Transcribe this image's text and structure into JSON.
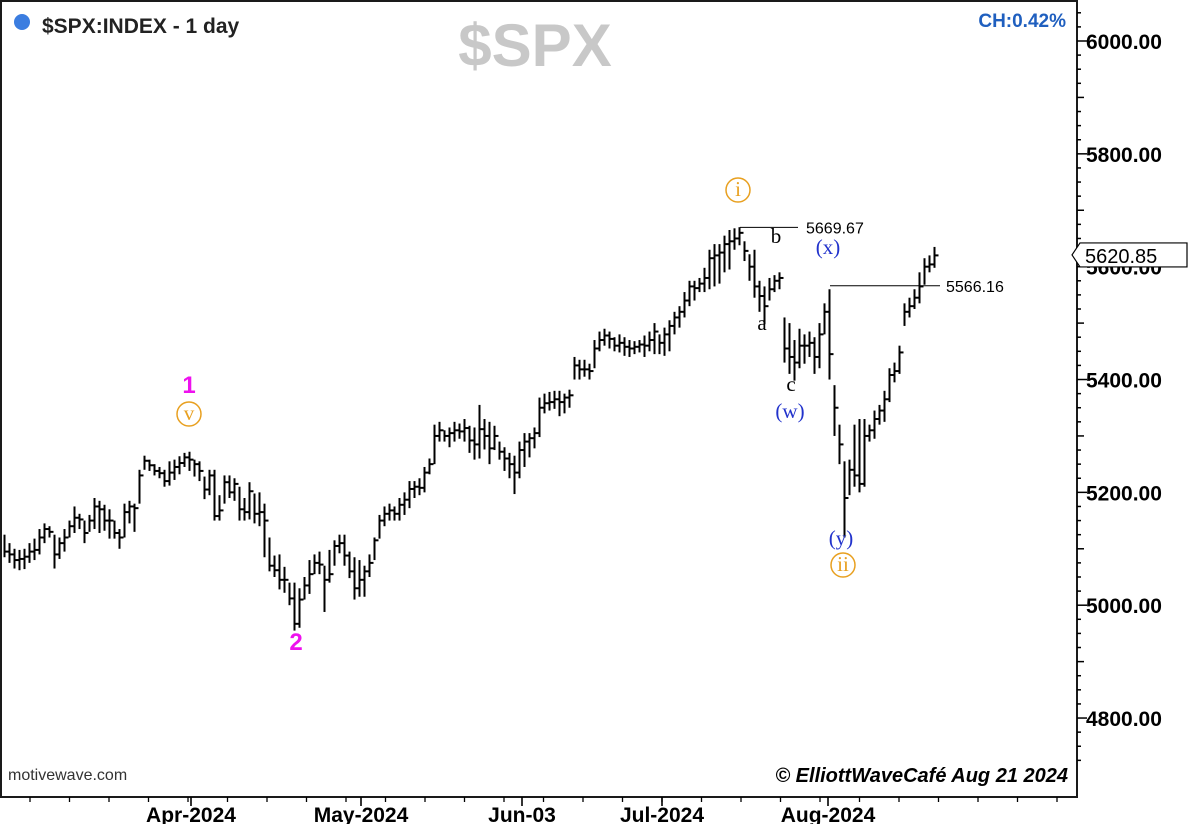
{
  "header": {
    "title": "$SPX:INDEX - 1 day",
    "watermark": "$SPX",
    "change": "CH:0.42%",
    "source": "motivewave.com",
    "copyright": "© ElliottWaveCafé Aug 21 2024"
  },
  "colors": {
    "bars": "#000000",
    "status_dot": "#3b7de0",
    "change_text": "#1f5fbf",
    "watermark": "#c8c8c8",
    "primary_wave": "#ee11ee",
    "minor_wave": "#e8a020",
    "blue_wave": "#2233cc",
    "black_wave": "#000000"
  },
  "chart_data": {
    "type": "ohlc",
    "title": "$SPX:INDEX - 1 day",
    "series_name": "$SPX",
    "ylim": [
      4700,
      6100
    ],
    "yticks": [
      "4800.00",
      "5000.00",
      "5200.00",
      "5400.00",
      "5600.00",
      "5800.00",
      "6000.00"
    ],
    "xticks": [
      "Apr-2024",
      "May-2024",
      "Jun-03",
      "Jul-2024",
      "Aug-2024"
    ],
    "last_price": "5620.85",
    "levels": [
      {
        "value": 5669.67,
        "label": "5669.67"
      },
      {
        "value": 5566.16,
        "label": "5566.16"
      }
    ],
    "wave_labels": [
      {
        "text": "1",
        "style": "primary"
      },
      {
        "text": "v",
        "style": "minor-circle"
      },
      {
        "text": "2",
        "style": "primary"
      },
      {
        "text": "i",
        "style": "minor-circle"
      },
      {
        "text": "a",
        "style": "black"
      },
      {
        "text": "b",
        "style": "black"
      },
      {
        "text": "c",
        "style": "black"
      },
      {
        "text": "(w)",
        "style": "blue"
      },
      {
        "text": "(x)",
        "style": "blue"
      },
      {
        "text": "(y)",
        "style": "blue"
      },
      {
        "text": "ii",
        "style": "minor-circle"
      }
    ],
    "bars": [
      [
        4.5,
        5125,
        5085,
        5095
      ],
      [
        9.5,
        5110,
        5075,
        5090
      ],
      [
        14.5,
        5100,
        5065,
        5080
      ],
      [
        19.5,
        5098,
        5062,
        5082
      ],
      [
        24.5,
        5100,
        5064,
        5086
      ],
      [
        29.5,
        5110,
        5075,
        5095
      ],
      [
        34.5,
        5118,
        5080,
        5098
      ],
      [
        39.5,
        5135,
        5090,
        5120
      ],
      [
        44.5,
        5145,
        5110,
        5135
      ],
      [
        49.5,
        5140,
        5120,
        5130
      ],
      [
        54.5,
        5125,
        5065,
        5090
      ],
      [
        59.5,
        5120,
        5082,
        5110
      ],
      [
        64.5,
        5135,
        5095,
        5120
      ],
      [
        69.5,
        5150,
        5120,
        5140
      ],
      [
        74.5,
        5175,
        5128,
        5155
      ],
      [
        79.5,
        5162,
        5135,
        5152
      ],
      [
        84.5,
        5150,
        5110,
        5128
      ],
      [
        89.5,
        5160,
        5130,
        5150
      ],
      [
        94.5,
        5190,
        5135,
        5175
      ],
      [
        99.5,
        5185,
        5128,
        5170
      ],
      [
        104.5,
        5178,
        5132,
        5150
      ],
      [
        109.5,
        5170,
        5118,
        5150
      ],
      [
        114.5,
        5150,
        5118,
        5128
      ],
      [
        119.5,
        5135,
        5100,
        5120
      ],
      [
        124.5,
        5180,
        5120,
        5165
      ],
      [
        129.5,
        5185,
        5145,
        5175
      ],
      [
        134.5,
        5180,
        5130,
        5172
      ],
      [
        139.5,
        5240,
        5180,
        5230
      ],
      [
        144.5,
        5265,
        5240,
        5256
      ],
      [
        149.5,
        5258,
        5238,
        5248
      ],
      [
        154.5,
        5250,
        5230,
        5238
      ],
      [
        159.5,
        5245,
        5225,
        5234
      ],
      [
        164.5,
        5240,
        5210,
        5220
      ],
      [
        169.5,
        5255,
        5212,
        5235
      ],
      [
        174.5,
        5258,
        5222,
        5245
      ],
      [
        179.5,
        5264,
        5232,
        5252
      ],
      [
        184.5,
        5270,
        5245,
        5262
      ],
      [
        189.5,
        5272,
        5238,
        5258
      ],
      [
        194.5,
        5258,
        5228,
        5250
      ],
      [
        199.5,
        5255,
        5220,
        5238
      ],
      [
        204.5,
        5228,
        5188,
        5205
      ],
      [
        209.5,
        5240,
        5195,
        5230
      ],
      [
        214.5,
        5240,
        5150,
        5158
      ],
      [
        219.5,
        5195,
        5150,
        5168
      ],
      [
        224.5,
        5230,
        5180,
        5218
      ],
      [
        229.5,
        5230,
        5190,
        5200
      ],
      [
        234.5,
        5225,
        5185,
        5215
      ],
      [
        239.5,
        5210,
        5150,
        5170
      ],
      [
        244.5,
        5190,
        5150,
        5165
      ],
      [
        249.5,
        5218,
        5152,
        5202
      ],
      [
        254.5,
        5198,
        5145,
        5162
      ],
      [
        259.5,
        5200,
        5140,
        5165
      ],
      [
        264.5,
        5180,
        5085,
        5150
      ],
      [
        269.5,
        5120,
        5060,
        5070
      ],
      [
        274.5,
        5088,
        5050,
        5062
      ],
      [
        279.5,
        5090,
        5028,
        5045
      ],
      [
        284.5,
        5068,
        5022,
        5045
      ],
      [
        289.5,
        5040,
        5000,
        5012
      ],
      [
        294.5,
        5040,
        4955,
        4967
      ],
      [
        299.5,
        5030,
        4960,
        5010
      ],
      [
        304.5,
        5050,
        5010,
        5035
      ],
      [
        309.5,
        5080,
        5020,
        5055
      ],
      [
        314.5,
        5090,
        5055,
        5075
      ],
      [
        319.5,
        5095,
        5055,
        5072
      ],
      [
        324.5,
        5070,
        4988,
        5045
      ],
      [
        329.5,
        5098,
        5040,
        5055
      ],
      [
        334.5,
        5115,
        5070,
        5105
      ],
      [
        339.5,
        5125,
        5092,
        5110
      ],
      [
        344.5,
        5125,
        5070,
        5088
      ],
      [
        349.5,
        5095,
        5048,
        5060
      ],
      [
        354.5,
        5085,
        5010,
        5030
      ],
      [
        359.5,
        5080,
        5015,
        5045
      ],
      [
        364.5,
        5070,
        5015,
        5060
      ],
      [
        369.5,
        5090,
        5050,
        5075
      ],
      [
        374.5,
        5120,
        5080,
        5115
      ],
      [
        379.5,
        5160,
        5118,
        5150
      ],
      [
        384.5,
        5175,
        5140,
        5162
      ],
      [
        389.5,
        5180,
        5150,
        5168
      ],
      [
        394.5,
        5175,
        5150,
        5162
      ],
      [
        399.5,
        5190,
        5150,
        5178
      ],
      [
        404.5,
        5200,
        5160,
        5187
      ],
      [
        409.5,
        5220,
        5172,
        5206
      ],
      [
        414.5,
        5220,
        5190,
        5210
      ],
      [
        419.5,
        5225,
        5195,
        5208
      ],
      [
        424.5,
        5245,
        5200,
        5235
      ],
      [
        429.5,
        5260,
        5232,
        5250
      ],
      [
        434.5,
        5320,
        5250,
        5300
      ],
      [
        439.5,
        5325,
        5290,
        5310
      ],
      [
        444.5,
        5310,
        5290,
        5300
      ],
      [
        449.5,
        5315,
        5280,
        5305
      ],
      [
        454.5,
        5325,
        5290,
        5310
      ],
      [
        459.5,
        5322,
        5295,
        5308
      ],
      [
        464.5,
        5330,
        5290,
        5314
      ],
      [
        469.5,
        5318,
        5270,
        5292
      ],
      [
        474.5,
        5315,
        5258,
        5285
      ],
      [
        479.5,
        5355,
        5260,
        5312
      ],
      [
        484.5,
        5330,
        5276,
        5300
      ],
      [
        489.5,
        5325,
        5250,
        5278
      ],
      [
        494.5,
        5318,
        5275,
        5300
      ],
      [
        499.5,
        5290,
        5258,
        5272
      ],
      [
        504.5,
        5280,
        5238,
        5260
      ],
      [
        509.5,
        5270,
        5225,
        5250
      ],
      [
        514.5,
        5265,
        5197,
        5235
      ],
      [
        519.5,
        5290,
        5225,
        5275
      ],
      [
        524.5,
        5305,
        5245,
        5290
      ],
      [
        529.5,
        5305,
        5262,
        5296
      ],
      [
        534.5,
        5315,
        5278,
        5305
      ],
      [
        539.5,
        5368,
        5298,
        5350
      ],
      [
        544.5,
        5375,
        5340,
        5358
      ],
      [
        549.5,
        5378,
        5345,
        5360
      ],
      [
        554.5,
        5380,
        5348,
        5365
      ],
      [
        559.5,
        5380,
        5335,
        5360
      ],
      [
        564.5,
        5375,
        5340,
        5368
      ],
      [
        569.5,
        5382,
        5350,
        5372
      ],
      [
        574.5,
        5440,
        5400,
        5425
      ],
      [
        579.5,
        5435,
        5400,
        5418
      ],
      [
        584.5,
        5435,
        5405,
        5418
      ],
      [
        589.5,
        5428,
        5400,
        5415
      ],
      [
        594.5,
        5470,
        5420,
        5455
      ],
      [
        599.5,
        5485,
        5450,
        5470
      ],
      [
        604.5,
        5490,
        5460,
        5478
      ],
      [
        609.5,
        5485,
        5455,
        5472
      ],
      [
        614.5,
        5475,
        5450,
        5460
      ],
      [
        619.5,
        5480,
        5448,
        5465
      ],
      [
        624.5,
        5475,
        5442,
        5458
      ],
      [
        629.5,
        5470,
        5440,
        5455
      ],
      [
        634.5,
        5468,
        5445,
        5458
      ],
      [
        639.5,
        5470,
        5448,
        5462
      ],
      [
        644.5,
        5478,
        5440,
        5460
      ],
      [
        649.5,
        5485,
        5450,
        5470
      ],
      [
        654.5,
        5500,
        5445,
        5485
      ],
      [
        659.5,
        5480,
        5445,
        5465
      ],
      [
        664.5,
        5492,
        5442,
        5480
      ],
      [
        669.5,
        5505,
        5450,
        5495
      ],
      [
        674.5,
        5520,
        5480,
        5510
      ],
      [
        679.5,
        5530,
        5492,
        5520
      ],
      [
        684.5,
        5555,
        5510,
        5540
      ],
      [
        689.5,
        5575,
        5530,
        5565
      ],
      [
        694.5,
        5575,
        5540,
        5562
      ],
      [
        699.5,
        5580,
        5555,
        5570
      ],
      [
        704.5,
        5598,
        5555,
        5580
      ],
      [
        709.5,
        5630,
        5560,
        5615
      ],
      [
        714.5,
        5640,
        5565,
        5620
      ],
      [
        719.5,
        5640,
        5570,
        5625
      ],
      [
        724.5,
        5655,
        5590,
        5640
      ],
      [
        729.5,
        5665,
        5595,
        5645
      ],
      [
        734.5,
        5668,
        5630,
        5650
      ],
      [
        739.5,
        5670,
        5638,
        5660
      ],
      [
        744.5,
        5645,
        5610,
        5628
      ],
      [
        749.5,
        5622,
        5575,
        5600
      ],
      [
        754.5,
        5630,
        5545,
        5565
      ],
      [
        759.5,
        5575,
        5520,
        5548
      ],
      [
        764.5,
        5565,
        5498,
        5530
      ],
      [
        769.5,
        5580,
        5540,
        5560
      ],
      [
        774.5,
        5585,
        5555,
        5575
      ],
      [
        779.5,
        5590,
        5560,
        5580
      ],
      [
        784.5,
        5510,
        5430,
        5455
      ],
      [
        789.5,
        5500,
        5410,
        5440
      ],
      [
        794.5,
        5470,
        5398,
        5430
      ],
      [
        799.5,
        5490,
        5420,
        5460
      ],
      [
        804.5,
        5480,
        5428,
        5460
      ],
      [
        809.5,
        5485,
        5440,
        5465
      ],
      [
        814.5,
        5475,
        5410,
        5440
      ],
      [
        819.5,
        5500,
        5420,
        5480
      ],
      [
        824.5,
        5535,
        5480,
        5520
      ],
      [
        829.5,
        5560,
        5400,
        5445
      ],
      [
        834.5,
        5390,
        5300,
        5350
      ],
      [
        839.5,
        5320,
        5250,
        5285
      ],
      [
        844.5,
        5255,
        5120,
        5190
      ],
      [
        849.5,
        5258,
        5195,
        5240
      ],
      [
        854.5,
        5320,
        5210,
        5230
      ],
      [
        859.5,
        5330,
        5200,
        5215
      ],
      [
        864.5,
        5330,
        5210,
        5300
      ],
      [
        869.5,
        5320,
        5290,
        5310
      ],
      [
        874.5,
        5345,
        5295,
        5330
      ],
      [
        879.5,
        5355,
        5320,
        5345
      ],
      [
        884.5,
        5380,
        5325,
        5365
      ],
      [
        889.5,
        5420,
        5360,
        5408
      ],
      [
        894.5,
        5430,
        5395,
        5415
      ],
      [
        899.5,
        5460,
        5410,
        5448
      ],
      [
        904.5,
        5535,
        5495,
        5520
      ],
      [
        909.5,
        5545,
        5510,
        5530
      ],
      [
        914.5,
        5560,
        5525,
        5545
      ],
      [
        919.5,
        5590,
        5535,
        5565
      ],
      [
        924.5,
        5615,
        5568,
        5600
      ],
      [
        929.5,
        5620,
        5590,
        5604
      ],
      [
        934.5,
        5635,
        5598,
        5620
      ]
    ]
  }
}
